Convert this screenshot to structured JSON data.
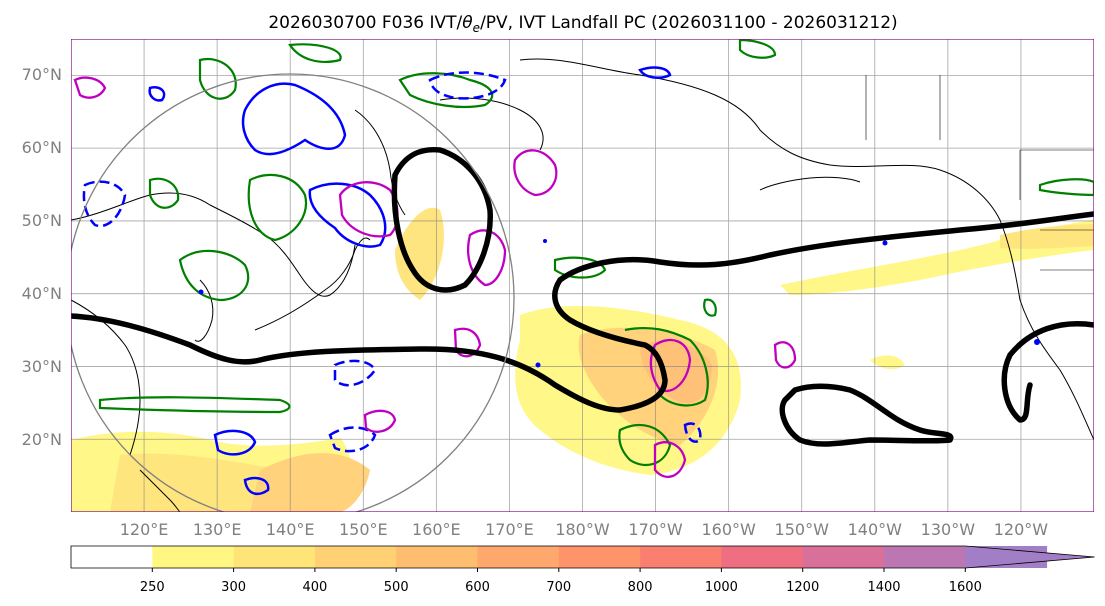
{
  "title": "2026030700 F036 IVT/θe/PV, IVT Landfall PC (2026031100 - 2026031212)",
  "title_parts": {
    "prefix": "2026030700 F036 IVT/",
    "theta": "θ",
    "theta_sub": "e",
    "suffix": "/PV, IVT Landfall PC (2026031100 - 2026031212)"
  },
  "map": {
    "lat_range": [
      10,
      75
    ],
    "lon_range_east": [
      110,
      250
    ],
    "lat_labels": [
      "70°N",
      "60°N",
      "50°N",
      "40°N",
      "30°N",
      "20°N"
    ],
    "lon_labels": [
      "120°E",
      "130°E",
      "140°E",
      "150°E",
      "160°E",
      "170°E",
      "180°W",
      "170°W",
      "160°W",
      "150°W",
      "140°W",
      "130°W",
      "120°W"
    ],
    "colors": {
      "theta_e_contour": "#000000",
      "pv_positive": "#0000ff",
      "pv_negative": "#0000ff",
      "pv_secondary": "#c000c0",
      "moisture_contour": "#008000",
      "coastline": "#000000",
      "grid": "#808080",
      "border": "#800080"
    }
  },
  "colorbar": {
    "levels": [
      "250",
      "300",
      "400",
      "500",
      "600",
      "700",
      "800",
      "1000",
      "1200",
      "1400",
      "1600"
    ],
    "colors": [
      "#ffffff",
      "#fff782",
      "#ffe478",
      "#ffd074",
      "#ffbd70",
      "#ffa86d",
      "#ff946a",
      "#fb7f70",
      "#f06e82",
      "#d8709a",
      "#bc77b2",
      "#a27ec6"
    ]
  }
}
